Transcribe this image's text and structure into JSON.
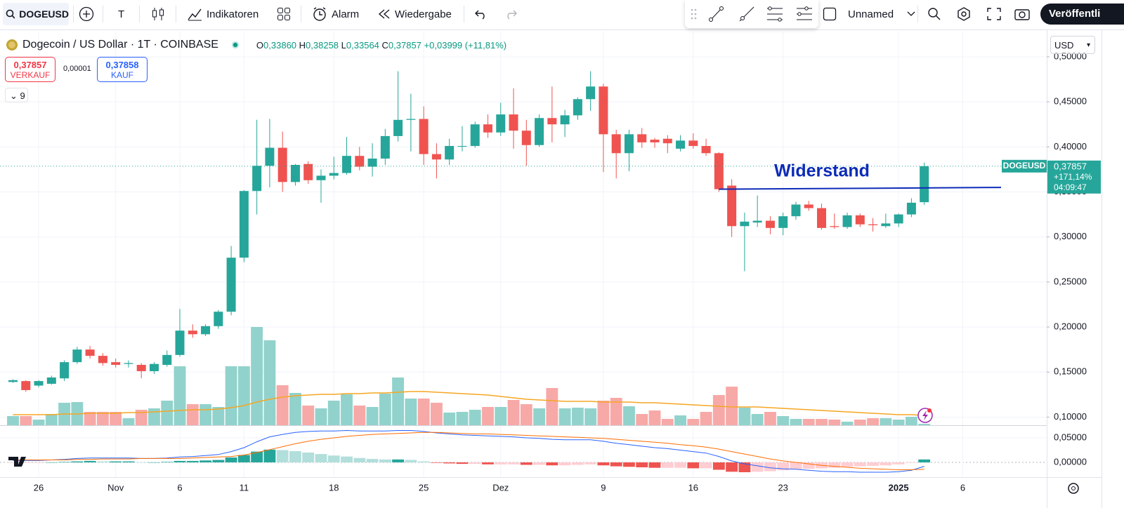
{
  "toolbar": {
    "symbol": "DOGEUSD",
    "interval": "T",
    "indicators": "Indikatoren",
    "alarm": "Alarm",
    "replay": "Wiedergabe",
    "layout": "Unnamed",
    "publish": "Veröffentli"
  },
  "legend": {
    "title": "Dogecoin / US Dollar · 1T · COINBASE",
    "ohlc": [
      {
        "label": "O",
        "value": "0,33860"
      },
      {
        "label": "H",
        "value": "0,38258"
      },
      {
        "label": "L",
        "value": "0,33564"
      },
      {
        "label": "C",
        "value": "0,37857"
      }
    ],
    "change": "+0,03999 (+11,81%)",
    "sell": {
      "price": "0,37857",
      "label": "VERKAUF"
    },
    "spread": "0,00001",
    "buy": {
      "price": "0,37858",
      "label": "KAUF"
    },
    "indicators_count": "9"
  },
  "currency": "USD",
  "chart_data": {
    "type": "candlestick",
    "categories": [
      null,
      null,
      "26",
      null,
      null,
      null,
      null,
      null,
      "Nov",
      null,
      null,
      null,
      null,
      "6",
      null,
      null,
      null,
      null,
      "11",
      null,
      null,
      null,
      null,
      null,
      null,
      "18",
      null,
      null,
      null,
      null,
      null,
      null,
      "25",
      null,
      null,
      null,
      null,
      null,
      "Dez",
      null,
      null,
      null,
      null,
      null,
      null,
      null,
      "9",
      null,
      null,
      null,
      null,
      null,
      null,
      "16",
      null,
      null,
      null,
      null,
      null,
      null,
      "23",
      null,
      null,
      null,
      null,
      null,
      null,
      null,
      null,
      "2025",
      null,
      null,
      null,
      null,
      "6",
      null
    ],
    "open": [
      0.139,
      0.14,
      0.135,
      0.137,
      0.143,
      0.161,
      0.175,
      0.168,
      0.161,
      0.159,
      0.158,
      0.151,
      0.158,
      0.169,
      0.196,
      0.192,
      0.201,
      0.217,
      0.277,
      0.351,
      0.379,
      0.399,
      0.361,
      0.381,
      0.363,
      0.368,
      0.371,
      0.39,
      0.378,
      0.387,
      0.412,
      0.43,
      0.431,
      0.392,
      0.386,
      0.401,
      0.401,
      0.425,
      0.416,
      0.436,
      0.418,
      0.402,
      0.432,
      0.425,
      0.435,
      0.453,
      0.467,
      0.414,
      0.393,
      0.414,
      0.408,
      0.409,
      0.398,
      0.407,
      0.401,
      0.393,
      0.357,
      0.312,
      0.316,
      0.318,
      0.31,
      0.323,
      0.336,
      0.332,
      0.312,
      0.311,
      0.324,
      0.314,
      0.312,
      0.315,
      0.325,
      0.3386,
      null,
      null,
      null,
      null
    ],
    "high": [
      0.142,
      0.141,
      0.141,
      0.146,
      0.163,
      0.178,
      0.179,
      0.171,
      0.165,
      0.163,
      0.16,
      0.161,
      0.174,
      0.22,
      0.203,
      0.203,
      0.219,
      0.29,
      0.352,
      0.43,
      0.431,
      0.417,
      0.381,
      0.384,
      0.375,
      0.389,
      0.411,
      0.4,
      0.404,
      0.42,
      0.484,
      0.459,
      0.445,
      0.404,
      0.409,
      0.423,
      0.428,
      0.436,
      0.449,
      0.465,
      0.43,
      0.436,
      0.467,
      0.441,
      0.455,
      0.484,
      0.47,
      0.419,
      0.419,
      0.421,
      0.41,
      0.413,
      0.413,
      0.415,
      0.409,
      0.394,
      0.364,
      0.327,
      0.346,
      0.323,
      0.327,
      0.339,
      0.34,
      0.337,
      0.326,
      0.327,
      0.326,
      0.321,
      0.326,
      0.326,
      0.343,
      0.38258,
      null,
      null,
      null,
      null
    ],
    "low": [
      0.138,
      0.128,
      0.133,
      0.136,
      0.14,
      0.159,
      0.165,
      0.157,
      0.155,
      0.155,
      0.143,
      0.148,
      0.156,
      0.167,
      0.188,
      0.19,
      0.198,
      0.213,
      0.272,
      0.325,
      0.355,
      0.35,
      0.357,
      0.359,
      0.338,
      0.364,
      0.369,
      0.374,
      0.367,
      0.38,
      0.406,
      0.395,
      0.38,
      0.365,
      0.38,
      0.395,
      0.399,
      0.41,
      0.412,
      0.398,
      0.379,
      0.4,
      0.405,
      0.411,
      0.43,
      0.44,
      0.372,
      0.365,
      0.373,
      0.399,
      0.399,
      0.393,
      0.395,
      0.398,
      0.39,
      0.35,
      0.3,
      0.262,
      0.311,
      0.303,
      0.302,
      0.319,
      0.329,
      0.308,
      0.309,
      0.309,
      0.311,
      0.306,
      0.31,
      0.311,
      0.322,
      0.33564,
      null,
      null,
      null,
      null
    ],
    "close": [
      0.141,
      0.13,
      0.14,
      0.144,
      0.161,
      0.175,
      0.168,
      0.16,
      0.158,
      0.16,
      0.151,
      0.159,
      0.169,
      0.196,
      0.192,
      0.201,
      0.217,
      0.277,
      0.351,
      0.379,
      0.399,
      0.361,
      0.38,
      0.363,
      0.368,
      0.371,
      0.39,
      0.378,
      0.387,
      0.412,
      0.43,
      0.431,
      0.392,
      0.386,
      0.401,
      0.401,
      0.425,
      0.416,
      0.436,
      0.418,
      0.402,
      0.432,
      0.425,
      0.435,
      0.453,
      0.467,
      0.414,
      0.393,
      0.414,
      0.405,
      0.405,
      0.404,
      0.407,
      0.401,
      0.393,
      0.353,
      0.312,
      0.317,
      0.318,
      0.31,
      0.323,
      0.336,
      0.332,
      0.31,
      0.311,
      0.324,
      0.314,
      0.313,
      0.315,
      0.325,
      0.338,
      0.37857,
      null,
      null,
      null,
      null
    ],
    "up_color": "#26a69a",
    "down_color": "#ef5350",
    "ylim": [
      0.091,
      0.528
    ],
    "yticks": [
      {
        "value": 0.1,
        "label": "0,10000"
      },
      {
        "value": 0.15,
        "label": "0,15000"
      },
      {
        "value": 0.2,
        "label": "0,20000"
      },
      {
        "value": 0.25,
        "label": "0,25000"
      },
      {
        "value": 0.3,
        "label": "0,30000"
      },
      {
        "value": 0.35,
        "label": "0,35000"
      },
      {
        "value": 0.4,
        "label": "0,40000"
      },
      {
        "value": 0.45,
        "label": "0,45000"
      },
      {
        "value": 0.5,
        "label": "0,50000"
      }
    ],
    "grid": true,
    "last_price": {
      "symbol": "DOGEUSD",
      "value": "0,37857",
      "change": "+171,14%",
      "countdown": "04:09:47"
    },
    "annotation": {
      "text": "Widerstand",
      "values": [
        0.353,
        0.355
      ],
      "color": "#0d2bb8"
    },
    "volume": {
      "values": [
        13,
        13,
        8,
        16,
        32,
        33,
        19,
        19,
        19,
        10,
        22,
        24,
        35,
        84,
        30,
        30,
        26,
        84,
        84,
        140,
        121,
        57,
        46,
        28,
        24,
        35,
        44,
        28,
        26,
        45,
        68,
        38,
        38,
        32,
        18,
        19,
        22,
        26,
        26,
        36,
        30,
        24,
        53,
        24,
        25,
        24,
        35,
        39,
        27,
        16,
        21,
        9,
        14,
        9,
        19,
        43,
        55,
        25,
        16,
        19,
        13,
        9,
        9,
        9,
        8,
        5,
        8,
        10,
        10,
        8,
        12,
        2,
        null,
        null,
        null,
        null
      ],
      "ma": [
        15,
        15,
        15,
        15,
        16,
        16,
        17,
        17,
        17,
        18,
        18,
        19,
        20,
        21,
        22,
        22,
        23,
        25,
        28,
        33,
        37,
        40,
        42,
        43,
        44,
        44,
        45,
        45,
        46,
        46,
        47,
        48,
        48,
        47,
        46,
        45,
        44,
        43,
        41,
        39,
        37,
        36,
        35,
        34,
        34,
        34,
        33,
        33,
        33,
        32,
        32,
        31,
        30,
        29,
        28,
        27,
        26,
        26,
        26,
        25,
        24,
        23,
        22,
        21,
        20,
        19,
        18,
        17,
        16,
        15,
        15,
        14,
        null,
        null,
        null,
        null
      ],
      "colors": [
        "#92d2cc",
        "#f7a9a7"
      ],
      "ma_color": "#f5a623"
    },
    "macd": {
      "ylim": [
        -0.03,
        0.0729
      ],
      "yticks": [
        {
          "value": 0,
          "label": "0,00000"
        },
        {
          "value": 0.05,
          "label": "0,05000"
        }
      ],
      "macd": [
        0.004,
        0.004,
        0.004,
        0.005,
        0.006,
        0.008,
        0.009,
        0.009,
        0.009,
        0.009,
        0.008,
        0.008,
        0.009,
        0.011,
        0.012,
        0.014,
        0.016,
        0.022,
        0.03,
        0.042,
        0.052,
        0.057,
        0.061,
        0.063,
        0.064,
        0.064,
        0.065,
        0.064,
        0.064,
        0.064,
        0.065,
        0.065,
        0.063,
        0.06,
        0.058,
        0.056,
        0.055,
        0.054,
        0.053,
        0.052,
        0.05,
        0.049,
        0.047,
        0.046,
        0.046,
        0.046,
        0.043,
        0.039,
        0.036,
        0.033,
        0.03,
        0.028,
        0.025,
        0.022,
        0.019,
        0.012,
        0.003,
        -0.003,
        -0.007,
        -0.011,
        -0.013,
        -0.014,
        -0.016,
        -0.018,
        -0.019,
        -0.019,
        -0.02,
        -0.02,
        -0.02,
        -0.019,
        -0.016,
        -0.008,
        null,
        null,
        null,
        null
      ],
      "signal": [
        0.005,
        0.005,
        0.005,
        0.005,
        0.005,
        0.006,
        0.006,
        0.007,
        0.007,
        0.007,
        0.008,
        0.008,
        0.008,
        0.008,
        0.009,
        0.01,
        0.011,
        0.012,
        0.015,
        0.02,
        0.026,
        0.032,
        0.038,
        0.043,
        0.047,
        0.05,
        0.053,
        0.055,
        0.057,
        0.058,
        0.059,
        0.06,
        0.061,
        0.061,
        0.06,
        0.059,
        0.058,
        0.058,
        0.057,
        0.056,
        0.055,
        0.054,
        0.053,
        0.052,
        0.051,
        0.05,
        0.049,
        0.047,
        0.045,
        0.043,
        0.041,
        0.039,
        0.036,
        0.034,
        0.031,
        0.027,
        0.022,
        0.017,
        0.012,
        0.007,
        0.003,
        0.0,
        -0.003,
        -0.006,
        -0.008,
        -0.01,
        -0.012,
        -0.013,
        -0.014,
        -0.015,
        -0.015,
        -0.014,
        null,
        null,
        null,
        null
      ],
      "histogram": [
        -0.001,
        -0.001,
        -0.001,
        0,
        0.001,
        0.002,
        0.003,
        0.002,
        0.002,
        0.002,
        0,
        0,
        0.001,
        0.003,
        0.003,
        0.004,
        0.005,
        0.01,
        0.015,
        0.022,
        0.026,
        0.025,
        0.023,
        0.02,
        0.017,
        0.014,
        0.012,
        0.009,
        0.007,
        0.006,
        0.006,
        0.005,
        0.002,
        -0.001,
        -0.002,
        -0.003,
        -0.003,
        -0.004,
        -0.004,
        -0.004,
        -0.005,
        -0.005,
        -0.006,
        -0.006,
        -0.005,
        -0.004,
        -0.006,
        -0.008,
        -0.009,
        -0.01,
        -0.011,
        -0.011,
        -0.011,
        -0.012,
        -0.012,
        -0.015,
        -0.019,
        -0.02,
        -0.019,
        -0.018,
        -0.016,
        -0.014,
        -0.013,
        -0.012,
        -0.011,
        -0.009,
        -0.008,
        -0.007,
        -0.006,
        -0.004,
        -0.001,
        0.006,
        null,
        null,
        null,
        null
      ],
      "macd_color": "#2962ff",
      "signal_color": "#ff6d00",
      "histogram_colors": [
        "#26a69a",
        "#b2dfdb",
        "#ef5350",
        "#ffcdd2"
      ]
    }
  }
}
